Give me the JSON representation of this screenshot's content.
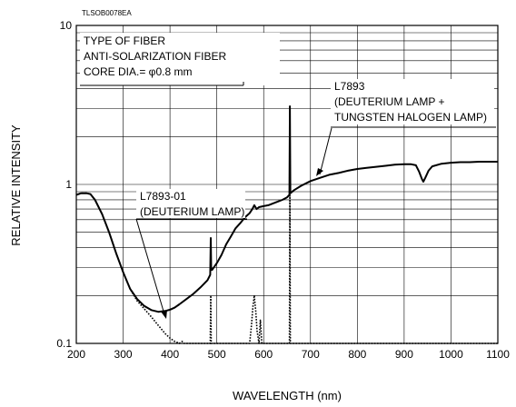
{
  "chart_data": {
    "type": "line",
    "code": "TLSOB0078EA",
    "xlabel": "WAVELENGTH (nm)",
    "ylabel": "RELATIVE INTENSITY",
    "xlim": [
      200,
      1100
    ],
    "ylim": [
      0.1,
      10
    ],
    "yscale": "log",
    "grid": true,
    "x_tick_labels": [
      "200",
      "300",
      "400",
      "500",
      "600",
      "700",
      "800",
      "900",
      "1000",
      "1100"
    ],
    "y_tick_labels": [
      "0.1",
      "1",
      "10"
    ],
    "info_box": {
      "lines": [
        "TYPE OF FIBER",
        "ANTI-SOLARIZATION FIBER",
        "CORE DIA.= φ0.8 mm"
      ]
    },
    "annotations": [
      {
        "lines": [
          "L7893",
          "(DEUTERIUM LAMP +",
          "TUNGSTEN HALOGEN LAMP)"
        ],
        "points_to": "L7893"
      },
      {
        "lines": [
          "L7893-01",
          "(DEUTERIUM LAMP)"
        ],
        "points_to": "L7893-01"
      }
    ],
    "series": [
      {
        "name": "L7893",
        "style": "solid",
        "color": "#000000",
        "points": [
          [
            200,
            0.86
          ],
          [
            210,
            0.88
          ],
          [
            222,
            0.88
          ],
          [
            230,
            0.87
          ],
          [
            240,
            0.8
          ],
          [
            255,
            0.65
          ],
          [
            270,
            0.5
          ],
          [
            285,
            0.37
          ],
          [
            300,
            0.28
          ],
          [
            315,
            0.22
          ],
          [
            330,
            0.19
          ],
          [
            345,
            0.172
          ],
          [
            360,
            0.162
          ],
          [
            375,
            0.158
          ],
          [
            390,
            0.16
          ],
          [
            400,
            0.163
          ],
          [
            410,
            0.168
          ],
          [
            420,
            0.176
          ],
          [
            435,
            0.19
          ],
          [
            450,
            0.205
          ],
          [
            465,
            0.225
          ],
          [
            480,
            0.25
          ],
          [
            486,
            0.27
          ],
          [
            487,
            0.46
          ],
          [
            488,
            0.29
          ],
          [
            490,
            0.29
          ],
          [
            500,
            0.32
          ],
          [
            510,
            0.36
          ],
          [
            520,
            0.42
          ],
          [
            530,
            0.47
          ],
          [
            540,
            0.53
          ],
          [
            550,
            0.57
          ],
          [
            560,
            0.62
          ],
          [
            570,
            0.66
          ],
          [
            576,
            0.7
          ],
          [
            580,
            0.74
          ],
          [
            585,
            0.7
          ],
          [
            590,
            0.72
          ],
          [
            600,
            0.73
          ],
          [
            610,
            0.74
          ],
          [
            620,
            0.76
          ],
          [
            630,
            0.78
          ],
          [
            640,
            0.8
          ],
          [
            650,
            0.83
          ],
          [
            655,
            0.86
          ],
          [
            656,
            3.1
          ],
          [
            657,
            0.88
          ],
          [
            665,
            0.92
          ],
          [
            680,
            0.98
          ],
          [
            700,
            1.05
          ],
          [
            720,
            1.1
          ],
          [
            740,
            1.15
          ],
          [
            760,
            1.18
          ],
          [
            780,
            1.22
          ],
          [
            800,
            1.25
          ],
          [
            820,
            1.27
          ],
          [
            840,
            1.29
          ],
          [
            860,
            1.31
          ],
          [
            880,
            1.33
          ],
          [
            900,
            1.34
          ],
          [
            915,
            1.34
          ],
          [
            925,
            1.32
          ],
          [
            932,
            1.2
          ],
          [
            938,
            1.08
          ],
          [
            941,
            1.04
          ],
          [
            945,
            1.1
          ],
          [
            952,
            1.22
          ],
          [
            960,
            1.3
          ],
          [
            980,
            1.35
          ],
          [
            1000,
            1.37
          ],
          [
            1020,
            1.38
          ],
          [
            1040,
            1.38
          ],
          [
            1060,
            1.39
          ],
          [
            1080,
            1.39
          ],
          [
            1100,
            1.39
          ]
        ]
      },
      {
        "name": "L7893-01",
        "style": "dotted",
        "color": "#000000",
        "points": [
          [
            200,
            0.86
          ],
          [
            210,
            0.88
          ],
          [
            222,
            0.88
          ],
          [
            230,
            0.87
          ],
          [
            240,
            0.8
          ],
          [
            255,
            0.65
          ],
          [
            270,
            0.5
          ],
          [
            285,
            0.37
          ],
          [
            300,
            0.28
          ],
          [
            315,
            0.22
          ],
          [
            330,
            0.185
          ],
          [
            345,
            0.165
          ],
          [
            360,
            0.147
          ],
          [
            375,
            0.13
          ],
          [
            390,
            0.115
          ],
          [
            400,
            0.108
          ],
          [
            410,
            0.103
          ],
          [
            420,
            0.1
          ],
          [
            426,
            0.103
          ],
          [
            430,
            0.1
          ],
          [
            440,
            0.1
          ],
          [
            480,
            0.1
          ],
          [
            486,
            0.1
          ],
          [
            487,
            0.2
          ],
          [
            488,
            0.1
          ],
          [
            570,
            0.1
          ],
          [
            574,
            0.13
          ],
          [
            577,
            0.17
          ],
          [
            580,
            0.2
          ],
          [
            583,
            0.16
          ],
          [
            586,
            0.12
          ],
          [
            590,
            0.1
          ],
          [
            593,
            0.14
          ],
          [
            596,
            0.1
          ],
          [
            600,
            0.1
          ],
          [
            650,
            0.1
          ],
          [
            655,
            0.1
          ],
          [
            656,
            0.86
          ],
          [
            657,
            0.1
          ],
          [
            700,
            0.1
          ],
          [
            1100,
            0.1
          ]
        ]
      }
    ]
  }
}
